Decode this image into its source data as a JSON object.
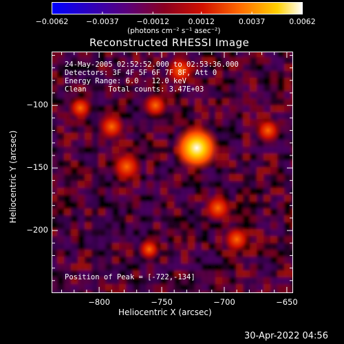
{
  "chart_data": {
    "type": "heatmap",
    "title": "Reconstructed RHESSI Image",
    "xlabel": "Heliocentric X (arcsec)",
    "ylabel": "Heliocentric Y (arcsec)",
    "xlim": [
      -838,
      -645
    ],
    "ylim": [
      -250,
      -57
    ],
    "x_ticks": [
      -800,
      -750,
      -700,
      -650
    ],
    "x_tick_labels": [
      "−800",
      "−750",
      "−700",
      "−650"
    ],
    "y_ticks": [
      -100,
      -150,
      -200
    ],
    "y_tick_labels": [
      "−100",
      "−150",
      "−200"
    ],
    "colorbar": {
      "min": -0.0062,
      "max": 0.0062,
      "ticks": [
        -0.0062,
        -0.0037,
        -0.0012,
        0.0012,
        0.0037,
        0.0062
      ],
      "tick_labels": [
        "−0.0062",
        "−0.0037",
        "−0.0012",
        "0.0012",
        "0.0037",
        "0.0062"
      ],
      "units_label": "(photons cm⁻² s⁻¹ asec⁻²)",
      "colors": [
        "#0000ff",
        "#5a007a",
        "#8a0020",
        "#d01000",
        "#ff6a00",
        "#ffd000",
        "#ffffff"
      ]
    },
    "peak": {
      "x": -722,
      "y": -134
    },
    "sources": [
      {
        "x": -722,
        "y": -134,
        "value": 0.0062
      },
      {
        "x": -778,
        "y": -149,
        "value": 0.0035
      },
      {
        "x": -735,
        "y": -72,
        "value": 0.0033
      },
      {
        "x": -790,
        "y": -117,
        "value": 0.0028
      },
      {
        "x": -705,
        "y": -182,
        "value": 0.003
      },
      {
        "x": -690,
        "y": -207,
        "value": 0.0028
      },
      {
        "x": -665,
        "y": -120,
        "value": 0.0025
      },
      {
        "x": -815,
        "y": -102,
        "value": 0.0022
      },
      {
        "x": -755,
        "y": -100,
        "value": 0.0024
      },
      {
        "x": -760,
        "y": -215,
        "value": 0.0018
      }
    ]
  },
  "annotations": {
    "time_range": "24-May-2005 02:52:52.000 to 02:53:36.000",
    "detectors": "Detectors: 3F 4F 5F 6F 7F 8F, Att 0",
    "energy_range": "Energy Range: 6.0 - 12.0 keV",
    "method": "Clean     Total counts: 3.47E+03",
    "peak_position": "Position of Peak = [-722,-134]"
  },
  "timestamp": "30-Apr-2022 04:56"
}
